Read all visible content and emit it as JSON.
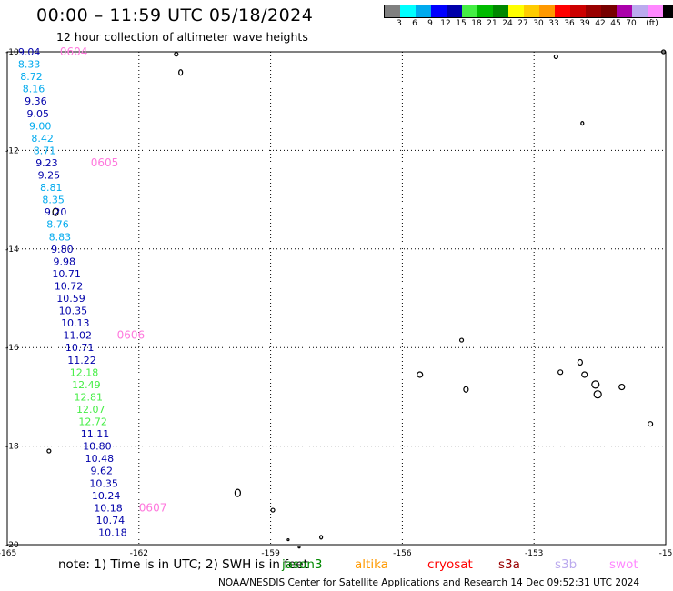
{
  "header": {
    "title": "00:00 – 11:59 UTC 05/18/2024",
    "subtitle": "12 hour collection of altimeter wave heights"
  },
  "legend": {
    "unit": "(ft)",
    "colors": [
      "#808080",
      "#00ffff",
      "#00aaee",
      "#0000ff",
      "#0000aa",
      "#44ee44",
      "#00bb00",
      "#008800",
      "#ffff00",
      "#ffcc00",
      "#ff9900",
      "#ff0000",
      "#cc0000",
      "#990000",
      "#770000",
      "#aa00aa",
      "#bbaaee",
      "#ff88ff",
      "#000000"
    ],
    "labels": [
      "3",
      "6",
      "9",
      "12",
      "15",
      "18",
      "21",
      "24",
      "27",
      "30",
      "33",
      "36",
      "39",
      "42",
      "45",
      "70"
    ]
  },
  "map": {
    "lon_labels": [
      "-165",
      "-162",
      "-159",
      "-156",
      "-153",
      "-15"
    ],
    "lat_labels": [
      "-10",
      "-12",
      "-14",
      "-16",
      "-18",
      "-20"
    ],
    "tick_lons": [
      -165,
      -162,
      -159,
      -156,
      -153,
      -150
    ],
    "tick_lats": [
      -10,
      -12,
      -14,
      -16,
      -18,
      -20
    ]
  },
  "track": {
    "points": [
      {
        "lon": -164.5,
        "lat": -10.0,
        "v": "9.04",
        "color": "#0000aa"
      },
      {
        "lon": -164.5,
        "lat": -10.25,
        "v": "8.33",
        "color": "#00aaee"
      },
      {
        "lon": -164.45,
        "lat": -10.5,
        "v": "8.72",
        "color": "#00aaee"
      },
      {
        "lon": -164.4,
        "lat": -10.75,
        "v": "8.16",
        "color": "#00aaee"
      },
      {
        "lon": -164.35,
        "lat": -11.0,
        "v": "9.36",
        "color": "#0000aa"
      },
      {
        "lon": -164.3,
        "lat": -11.25,
        "v": "9.05",
        "color": "#0000aa"
      },
      {
        "lon": -164.25,
        "lat": -11.5,
        "v": "9.00",
        "color": "#00aaee"
      },
      {
        "lon": -164.2,
        "lat": -11.75,
        "v": "8.42",
        "color": "#00aaee"
      },
      {
        "lon": -164.15,
        "lat": -12.0,
        "v": "8.71",
        "color": "#00aaee"
      },
      {
        "lon": -164.1,
        "lat": -12.25,
        "v": "9.23",
        "color": "#0000aa"
      },
      {
        "lon": -164.05,
        "lat": -12.5,
        "v": "9.25",
        "color": "#0000aa"
      },
      {
        "lon": -164.0,
        "lat": -12.75,
        "v": "8.81",
        "color": "#00aaee"
      },
      {
        "lon": -163.95,
        "lat": -13.0,
        "v": "8.35",
        "color": "#00aaee"
      },
      {
        "lon": -163.9,
        "lat": -13.25,
        "v": "9.20",
        "color": "#0000aa"
      },
      {
        "lon": -163.85,
        "lat": -13.5,
        "v": "8.76",
        "color": "#00aaee"
      },
      {
        "lon": -163.8,
        "lat": -13.75,
        "v": "8.83",
        "color": "#00aaee"
      },
      {
        "lon": -163.75,
        "lat": -14.0,
        "v": "9.80",
        "color": "#0000aa"
      },
      {
        "lon": -163.7,
        "lat": -14.25,
        "v": "9.98",
        "color": "#0000aa"
      },
      {
        "lon": -163.65,
        "lat": -14.5,
        "v": "10.71",
        "color": "#0000aa"
      },
      {
        "lon": -163.6,
        "lat": -14.75,
        "v": "10.72",
        "color": "#0000aa"
      },
      {
        "lon": -163.55,
        "lat": -15.0,
        "v": "10.59",
        "color": "#0000aa"
      },
      {
        "lon": -163.5,
        "lat": -15.25,
        "v": "10.35",
        "color": "#0000aa"
      },
      {
        "lon": -163.45,
        "lat": -15.5,
        "v": "10.13",
        "color": "#0000aa"
      },
      {
        "lon": -163.4,
        "lat": -15.75,
        "v": "11.02",
        "color": "#0000aa"
      },
      {
        "lon": -163.35,
        "lat": -16.0,
        "v": "10.71",
        "color": "#0000aa"
      },
      {
        "lon": -163.3,
        "lat": -16.25,
        "v": "11.22",
        "color": "#0000aa"
      },
      {
        "lon": -163.25,
        "lat": -16.5,
        "v": "12.18",
        "color": "#44ee44"
      },
      {
        "lon": -163.2,
        "lat": -16.75,
        "v": "12.49",
        "color": "#44ee44"
      },
      {
        "lon": -163.15,
        "lat": -17.0,
        "v": "12.81",
        "color": "#44ee44"
      },
      {
        "lon": -163.1,
        "lat": -17.25,
        "v": "12.07",
        "color": "#44ee44"
      },
      {
        "lon": -163.05,
        "lat": -17.5,
        "v": "12.72",
        "color": "#44ee44"
      },
      {
        "lon": -163.0,
        "lat": -17.75,
        "v": "11.11",
        "color": "#0000aa"
      },
      {
        "lon": -162.95,
        "lat": -18.0,
        "v": "10.80",
        "color": "#0000aa"
      },
      {
        "lon": -162.9,
        "lat": -18.25,
        "v": "10.48",
        "color": "#0000aa"
      },
      {
        "lon": -162.85,
        "lat": -18.5,
        "v": "9.62",
        "color": "#0000aa"
      },
      {
        "lon": -162.8,
        "lat": -18.75,
        "v": "10.35",
        "color": "#0000aa"
      },
      {
        "lon": -162.75,
        "lat": -19.0,
        "v": "10.24",
        "color": "#0000aa"
      },
      {
        "lon": -162.7,
        "lat": -19.25,
        "v": "10.18",
        "color": "#0000aa"
      },
      {
        "lon": -162.65,
        "lat": -19.5,
        "v": "10.74",
        "color": "#0000aa"
      },
      {
        "lon": -162.6,
        "lat": -19.75,
        "v": "10.18",
        "color": "#0000aa"
      }
    ],
    "time_labels": [
      {
        "lon": -163.8,
        "lat": -10.0,
        "text": "0604"
      },
      {
        "lon": -163.1,
        "lat": -12.25,
        "text": "0605"
      },
      {
        "lon": -162.5,
        "lat": -15.75,
        "text": "0606"
      },
      {
        "lon": -162.0,
        "lat": -19.25,
        "text": "0607"
      }
    ],
    "time_label_color": "#ff77dd"
  },
  "islands": [
    {
      "lon": -161.15,
      "lat": -10.05,
      "rx": 2,
      "ry": 2
    },
    {
      "lon": -161.05,
      "lat": -10.42,
      "rx": 2,
      "ry": 3
    },
    {
      "lon": -163.9,
      "lat": -13.25,
      "rx": 3,
      "ry": 4
    },
    {
      "lon": -152.5,
      "lat": -10.1,
      "rx": 2,
      "ry": 2
    },
    {
      "lon": -150.05,
      "lat": -10.0,
      "rx": 2,
      "ry": 2
    },
    {
      "lon": -151.9,
      "lat": -11.45,
      "rx": 1.5,
      "ry": 2
    },
    {
      "lon": -154.65,
      "lat": -15.85,
      "rx": 2,
      "ry": 2
    },
    {
      "lon": -155.6,
      "lat": -16.55,
      "rx": 3,
      "ry": 3
    },
    {
      "lon": -154.55,
      "lat": -16.85,
      "rx": 2.5,
      "ry": 3
    },
    {
      "lon": -151.95,
      "lat": -16.3,
      "rx": 2.5,
      "ry": 3
    },
    {
      "lon": -152.4,
      "lat": -16.5,
      "rx": 2.5,
      "ry": 2.5
    },
    {
      "lon": -151.85,
      "lat": -16.55,
      "rx": 3,
      "ry": 3
    },
    {
      "lon": -151.6,
      "lat": -16.75,
      "rx": 4,
      "ry": 4
    },
    {
      "lon": -151.55,
      "lat": -16.95,
      "rx": 4,
      "ry": 4
    },
    {
      "lon": -151.0,
      "lat": -16.8,
      "rx": 3,
      "ry": 3
    },
    {
      "lon": -150.35,
      "lat": -17.55,
      "rx": 2.5,
      "ry": 2.5
    },
    {
      "lon": -159.75,
      "lat": -18.95,
      "rx": 3,
      "ry": 4
    },
    {
      "lon": -158.95,
      "lat": -19.3,
      "rx": 2,
      "ry": 2
    },
    {
      "lon": -164.05,
      "lat": -18.1,
      "rx": 2,
      "ry": 2
    },
    {
      "lon": -157.85,
      "lat": -19.85,
      "rx": 1.5,
      "ry": 2
    },
    {
      "lon": -158.6,
      "lat": -19.9,
      "rx": 1,
      "ry": 1
    },
    {
      "lon": -158.35,
      "lat": -20.05,
      "rx": 1,
      "ry": 1
    }
  ],
  "footer": {
    "note": "note:  1)  Time is in UTC;  2)  SWH is in feet",
    "satellites": [
      {
        "name": "jason3",
        "color": "#008800"
      },
      {
        "name": "altika",
        "color": "#ff9900"
      },
      {
        "name": "cryosat",
        "color": "#ff0000"
      },
      {
        "name": "s3a",
        "color": "#990000"
      },
      {
        "name": "s3b",
        "color": "#bbaaee"
      },
      {
        "name": "swot",
        "color": "#ff88ff"
      }
    ],
    "credit": "NOAA/NESDIS Center for Satellite Applications and Research     14 Dec 09:52:31 UTC 2024"
  }
}
